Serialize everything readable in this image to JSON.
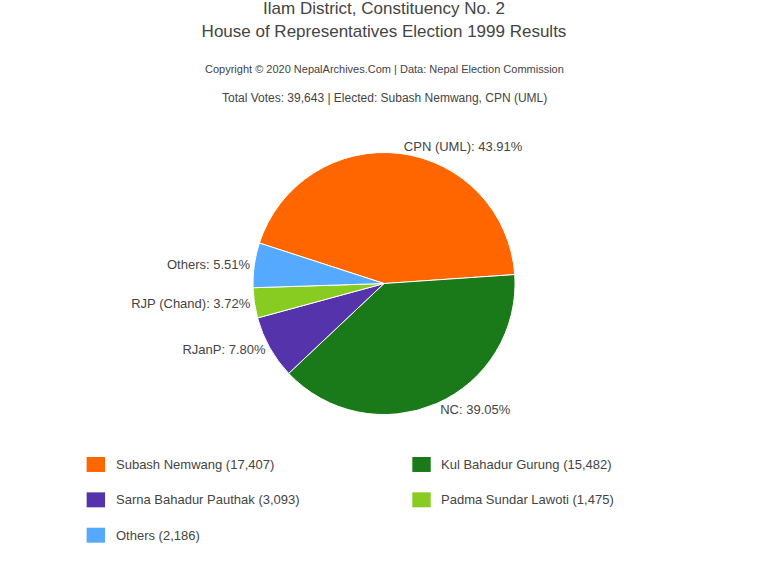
{
  "chart_data": {
    "type": "pie",
    "title": [
      "Ilam District, Constituency No. 2",
      "House of Representatives Election 1999 Results"
    ],
    "subtitle": [
      "Copyright © 2020 NepalArchives.Com | Data: Nepal Election Commission",
      "Total Votes: 39,643 | Elected: Subash Nemwang, CPN (UML)"
    ],
    "categories": [
      "CPN (UML): 43.91%",
      "NC: 39.05%",
      "RJanP: 7.80%",
      "RJP (Chand): 3.72%",
      "Others: 5.51%"
    ],
    "values": [
      43.91,
      39.05,
      7.8,
      3.72,
      5.51
    ],
    "colors": [
      "#ff6600",
      "#1a7a1a",
      "#5533aa",
      "#88cc22",
      "#55aaff"
    ],
    "legend": "bottom",
    "legend_entries": [
      {
        "label": "Subash Nemwang (17,407)",
        "color": "#ff6600"
      },
      {
        "label": "Sarna Bahadur Pauthak (3,093)",
        "color": "#5533aa"
      },
      {
        "label": "Others (2,186)",
        "color": "#55aaff"
      },
      {
        "label": "Kul Bahadur Gurung (15,482)",
        "color": "#1a7a1a"
      },
      {
        "label": "Padma Sundar Lawoti (1,475)",
        "color": "#88cc22"
      }
    ]
  }
}
